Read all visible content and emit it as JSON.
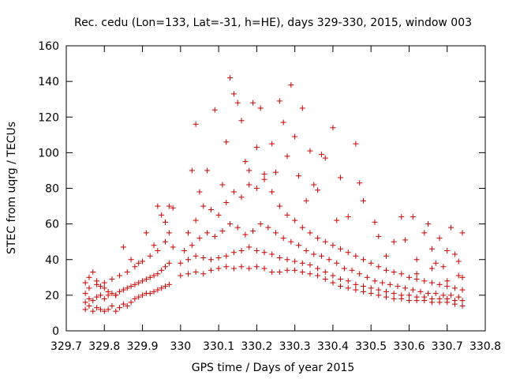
{
  "chart_data": {
    "type": "scatter",
    "title": "Rec. cedu (Lon=133, Lat=-31, h=HE), days 329-330, 2015, window 003",
    "xlabel": "GPS time / Days of year 2015",
    "ylabel": "STEC from uqrg / TECUs",
    "xlim": [
      329.7,
      330.8
    ],
    "ylim": [
      0,
      160
    ],
    "xticks": [
      "329.7",
      "329.8",
      "329.9",
      "330",
      "330.1",
      "330.2",
      "330.3",
      "330.4",
      "330.5",
      "330.6",
      "330.7",
      "330.8"
    ],
    "yticks": [
      "0",
      "20",
      "40",
      "60",
      "80",
      "100",
      "120",
      "140",
      "160"
    ],
    "grid": false,
    "legend": "none",
    "marker": "plus",
    "color": "#cc0000",
    "series": [
      {
        "points": [
          [
            329.75,
            12
          ],
          [
            329.76,
            14
          ],
          [
            329.77,
            11
          ],
          [
            329.78,
            13
          ],
          [
            329.79,
            12
          ],
          [
            329.8,
            11
          ],
          [
            329.81,
            12
          ],
          [
            329.82,
            14
          ],
          [
            329.83,
            11
          ],
          [
            329.84,
            13
          ],
          [
            329.85,
            15
          ],
          [
            329.86,
            14
          ],
          [
            329.87,
            16
          ],
          [
            329.88,
            18
          ],
          [
            329.89,
            19
          ],
          [
            329.9,
            20
          ],
          [
            329.91,
            21
          ],
          [
            329.92,
            21
          ],
          [
            329.93,
            22
          ],
          [
            329.94,
            23
          ],
          [
            329.95,
            24
          ],
          [
            329.96,
            25
          ],
          [
            329.97,
            26
          ],
          [
            329.75,
            16
          ],
          [
            329.76,
            18
          ],
          [
            329.77,
            17
          ],
          [
            329.78,
            19
          ],
          [
            329.79,
            20
          ],
          [
            329.8,
            18
          ],
          [
            329.81,
            20
          ],
          [
            329.82,
            21
          ],
          [
            329.83,
            20
          ],
          [
            329.84,
            22
          ],
          [
            329.85,
            23
          ],
          [
            329.86,
            24
          ],
          [
            329.87,
            25
          ],
          [
            329.88,
            26
          ],
          [
            329.89,
            27
          ],
          [
            329.9,
            28
          ],
          [
            329.91,
            29
          ],
          [
            329.92,
            30
          ],
          [
            329.93,
            31
          ],
          [
            329.94,
            32
          ],
          [
            329.95,
            34
          ],
          [
            329.96,
            36
          ],
          [
            329.97,
            38
          ],
          [
            329.75,
            21
          ],
          [
            329.76,
            24
          ],
          [
            329.78,
            28
          ],
          [
            329.79,
            25
          ],
          [
            329.8,
            27
          ],
          [
            329.82,
            29
          ],
          [
            329.84,
            31
          ],
          [
            329.86,
            33
          ],
          [
            329.88,
            36
          ],
          [
            329.9,
            39
          ],
          [
            329.92,
            42
          ],
          [
            329.94,
            45
          ],
          [
            329.96,
            50
          ],
          [
            329.97,
            55
          ],
          [
            329.75,
            27
          ],
          [
            329.76,
            30
          ],
          [
            329.77,
            33
          ],
          [
            329.78,
            26
          ],
          [
            329.8,
            24
          ],
          [
            329.81,
            22
          ],
          [
            329.83,
            20
          ],
          [
            329.85,
            47
          ],
          [
            329.87,
            40
          ],
          [
            329.89,
            38
          ],
          [
            329.91,
            55
          ],
          [
            329.93,
            48
          ],
          [
            329.94,
            70
          ],
          [
            329.95,
            65
          ],
          [
            329.96,
            61
          ],
          [
            329.97,
            70
          ],
          [
            329.98,
            69
          ],
          [
            329.98,
            47
          ],
          [
            330.0,
            31
          ],
          [
            330.02,
            32
          ],
          [
            330.04,
            33
          ],
          [
            330.06,
            32
          ],
          [
            330.08,
            34
          ],
          [
            330.1,
            35
          ],
          [
            330.12,
            36
          ],
          [
            330.14,
            35
          ],
          [
            330.16,
            36
          ],
          [
            330.18,
            35
          ],
          [
            330.2,
            36
          ],
          [
            330.22,
            35
          ],
          [
            330.24,
            33
          ],
          [
            330.26,
            33
          ],
          [
            330.28,
            34
          ],
          [
            330.3,
            34
          ],
          [
            330.32,
            33
          ],
          [
            330.34,
            32
          ],
          [
            330.36,
            31
          ],
          [
            330.38,
            29
          ],
          [
            330.4,
            27
          ],
          [
            330.42,
            25
          ],
          [
            330.44,
            24
          ],
          [
            330.46,
            23
          ],
          [
            330.48,
            22
          ],
          [
            330.5,
            21
          ],
          [
            330.52,
            20
          ],
          [
            330.54,
            19
          ],
          [
            330.56,
            18
          ],
          [
            330.58,
            18
          ],
          [
            330.6,
            17
          ],
          [
            330.62,
            17
          ],
          [
            330.64,
            17
          ],
          [
            330.66,
            16
          ],
          [
            330.68,
            16
          ],
          [
            330.7,
            16
          ],
          [
            330.72,
            15
          ],
          [
            330.74,
            14
          ],
          [
            330.0,
            38
          ],
          [
            330.02,
            40
          ],
          [
            330.04,
            42
          ],
          [
            330.06,
            41
          ],
          [
            330.08,
            40
          ],
          [
            330.1,
            41
          ],
          [
            330.12,
            42
          ],
          [
            330.14,
            44
          ],
          [
            330.16,
            45
          ],
          [
            330.18,
            47
          ],
          [
            330.2,
            45
          ],
          [
            330.22,
            44
          ],
          [
            330.24,
            43
          ],
          [
            330.26,
            41
          ],
          [
            330.28,
            40
          ],
          [
            330.3,
            39
          ],
          [
            330.32,
            38
          ],
          [
            330.34,
            37
          ],
          [
            330.36,
            35
          ],
          [
            330.38,
            33
          ],
          [
            330.4,
            31
          ],
          [
            330.42,
            29
          ],
          [
            330.44,
            28
          ],
          [
            330.46,
            26
          ],
          [
            330.48,
            25
          ],
          [
            330.5,
            24
          ],
          [
            330.52,
            23
          ],
          [
            330.54,
            22
          ],
          [
            330.56,
            21
          ],
          [
            330.58,
            20
          ],
          [
            330.6,
            20
          ],
          [
            330.62,
            19
          ],
          [
            330.64,
            19
          ],
          [
            330.66,
            18
          ],
          [
            330.68,
            18
          ],
          [
            330.7,
            18
          ],
          [
            330.72,
            17
          ],
          [
            330.74,
            17
          ],
          [
            330.01,
            45
          ],
          [
            330.03,
            48
          ],
          [
            330.05,
            52
          ],
          [
            330.07,
            55
          ],
          [
            330.09,
            53
          ],
          [
            330.11,
            56
          ],
          [
            330.13,
            60
          ],
          [
            330.15,
            58
          ],
          [
            330.17,
            54
          ],
          [
            330.19,
            56
          ],
          [
            330.21,
            60
          ],
          [
            330.23,
            58
          ],
          [
            330.25,
            55
          ],
          [
            330.27,
            52
          ],
          [
            330.29,
            50
          ],
          [
            330.31,
            48
          ],
          [
            330.33,
            45
          ],
          [
            330.35,
            43
          ],
          [
            330.37,
            42
          ],
          [
            330.39,
            40
          ],
          [
            330.41,
            38
          ],
          [
            330.43,
            35
          ],
          [
            330.45,
            34
          ],
          [
            330.47,
            32
          ],
          [
            330.49,
            30
          ],
          [
            330.51,
            28
          ],
          [
            330.53,
            27
          ],
          [
            330.55,
            26
          ],
          [
            330.57,
            25
          ],
          [
            330.59,
            24
          ],
          [
            330.61,
            23
          ],
          [
            330.63,
            22
          ],
          [
            330.65,
            21
          ],
          [
            330.67,
            21
          ],
          [
            330.69,
            20
          ],
          [
            330.71,
            20
          ],
          [
            330.73,
            19
          ],
          [
            330.02,
            55
          ],
          [
            330.04,
            62
          ],
          [
            330.06,
            70
          ],
          [
            330.08,
            68
          ],
          [
            330.1,
            65
          ],
          [
            330.12,
            72
          ],
          [
            330.14,
            78
          ],
          [
            330.16,
            75
          ],
          [
            330.18,
            82
          ],
          [
            330.2,
            80
          ],
          [
            330.22,
            85
          ],
          [
            330.24,
            78
          ],
          [
            330.26,
            70
          ],
          [
            330.28,
            65
          ],
          [
            330.3,
            62
          ],
          [
            330.32,
            58
          ],
          [
            330.34,
            55
          ],
          [
            330.36,
            52
          ],
          [
            330.38,
            50
          ],
          [
            330.4,
            48
          ],
          [
            330.42,
            46
          ],
          [
            330.44,
            44
          ],
          [
            330.46,
            42
          ],
          [
            330.48,
            40
          ],
          [
            330.5,
            38
          ],
          [
            330.52,
            36
          ],
          [
            330.54,
            34
          ],
          [
            330.56,
            33
          ],
          [
            330.58,
            32
          ],
          [
            330.6,
            30
          ],
          [
            330.62,
            29
          ],
          [
            330.64,
            28
          ],
          [
            330.66,
            27
          ],
          [
            330.68,
            26
          ],
          [
            330.7,
            25
          ],
          [
            330.72,
            24
          ],
          [
            330.74,
            23
          ],
          [
            330.03,
            90
          ],
          [
            330.04,
            116
          ],
          [
            330.05,
            78
          ],
          [
            330.07,
            90
          ],
          [
            330.09,
            124
          ],
          [
            330.11,
            82
          ],
          [
            330.12,
            106
          ],
          [
            330.13,
            142
          ],
          [
            330.14,
            133
          ],
          [
            330.15,
            128
          ],
          [
            330.16,
            118
          ],
          [
            330.17,
            95
          ],
          [
            330.18,
            90
          ],
          [
            330.19,
            128
          ],
          [
            330.2,
            103
          ],
          [
            330.21,
            125
          ],
          [
            330.22,
            88
          ],
          [
            330.24,
            105
          ],
          [
            330.25,
            89
          ],
          [
            330.26,
            129
          ],
          [
            330.27,
            117
          ],
          [
            330.28,
            98
          ],
          [
            330.29,
            138
          ],
          [
            330.3,
            109
          ],
          [
            330.31,
            87
          ],
          [
            330.32,
            125
          ],
          [
            330.33,
            73
          ],
          [
            330.34,
            101
          ],
          [
            330.35,
            82
          ],
          [
            330.36,
            79
          ],
          [
            330.37,
            99
          ],
          [
            330.38,
            97
          ],
          [
            330.4,
            114
          ],
          [
            330.41,
            62
          ],
          [
            330.42,
            86
          ],
          [
            330.44,
            64
          ],
          [
            330.46,
            105
          ],
          [
            330.47,
            83
          ],
          [
            330.48,
            73
          ],
          [
            330.51,
            61
          ],
          [
            330.52,
            53
          ],
          [
            330.54,
            42
          ],
          [
            330.56,
            50
          ],
          [
            330.58,
            64
          ],
          [
            330.59,
            51
          ],
          [
            330.61,
            64
          ],
          [
            330.62,
            40
          ],
          [
            330.64,
            55
          ],
          [
            330.65,
            60
          ],
          [
            330.66,
            46
          ],
          [
            330.67,
            38
          ],
          [
            330.68,
            52
          ],
          [
            330.69,
            36
          ],
          [
            330.7,
            45
          ],
          [
            330.71,
            58
          ],
          [
            330.72,
            43
          ],
          [
            330.73,
            39
          ],
          [
            330.74,
            55
          ],
          [
            330.74,
            30
          ],
          [
            330.73,
            31
          ],
          [
            330.7,
            28
          ],
          [
            330.66,
            35
          ],
          [
            330.62,
            32
          ]
        ]
      }
    ]
  }
}
